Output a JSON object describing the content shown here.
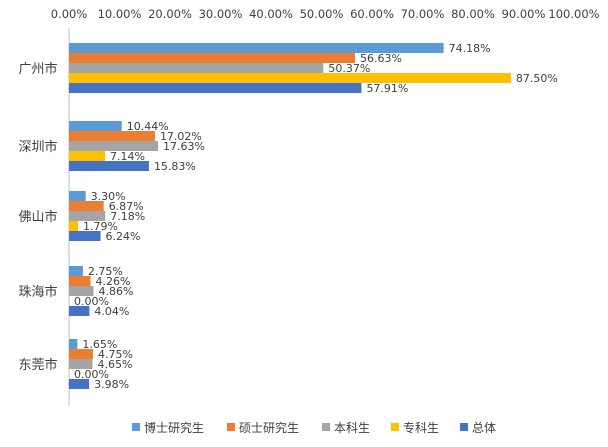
{
  "chart_data": {
    "type": "bar",
    "orientation": "horizontal",
    "categories": [
      "广州市",
      "深圳市",
      "佛山市",
      "珠海市",
      "东莞市"
    ],
    "series": [
      {
        "name": "博士研究生",
        "color": "#5B9BD5",
        "values": [
          74.18,
          10.44,
          3.3,
          2.75,
          1.65
        ]
      },
      {
        "name": "硕士研究生",
        "color": "#ED7D31",
        "values": [
          56.63,
          17.02,
          6.87,
          4.26,
          4.75
        ]
      },
      {
        "name": "本科生",
        "color": "#A5A5A5",
        "values": [
          50.37,
          17.63,
          7.18,
          4.86,
          4.65
        ]
      },
      {
        "name": "专科生",
        "color": "#FFC000",
        "values": [
          87.5,
          7.14,
          1.79,
          0.0,
          0.0
        ]
      },
      {
        "name": "总体",
        "color": "#4472C4",
        "values": [
          57.91,
          15.83,
          6.24,
          4.04,
          3.98
        ]
      }
    ],
    "data_labels": [
      [
        "74.18%",
        "10.44%",
        "3.30%",
        "2.75%",
        "1.65%"
      ],
      [
        "56.63%",
        "17.02%",
        "6.87%",
        "4.26%",
        "4.75%"
      ],
      [
        "50.37%",
        "17.63%",
        "7.18%",
        "4.86%",
        "4.65%"
      ],
      [
        "87.50%",
        "7.14%",
        "1.79%",
        "0.00%",
        "0.00%"
      ],
      [
        "57.91%",
        "15.83%",
        "6.24%",
        "4.04%",
        "3.98%"
      ]
    ],
    "x_ticks": [
      0,
      10,
      20,
      30,
      40,
      50,
      60,
      70,
      80,
      90,
      100
    ],
    "x_tick_labels": [
      "0.00%",
      "10.00%",
      "20.00%",
      "30.00%",
      "40.00%",
      "50.00%",
      "60.00%",
      "70.00%",
      "80.00%",
      "90.00%",
      "100.00%"
    ],
    "xlim": [
      0,
      100
    ],
    "x_axis_position": "top",
    "grid": false,
    "legend": "bottom"
  }
}
